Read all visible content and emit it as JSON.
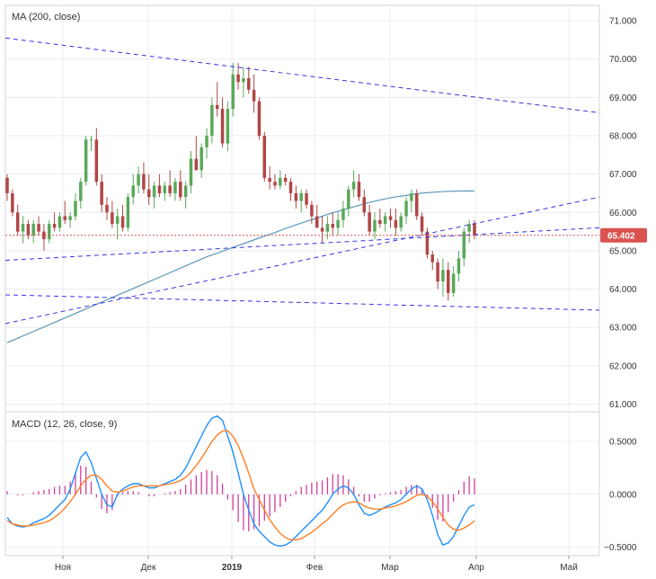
{
  "chart_data": [
    {
      "type": "candlestick",
      "title": "MA (200, close)",
      "y_ticks": [
        "71.000",
        "70.000",
        "69.000",
        "68.000",
        "67.000",
        "66.000",
        "65.000",
        "64.000",
        "63.000",
        "62.000",
        "61.000"
      ],
      "ylim": [
        60.8,
        71.4
      ],
      "current_price_label": "65.402",
      "current_price": 65.402,
      "x_labels": [
        "Ноя",
        "Дек",
        "2019",
        "Фев",
        "Мар",
        "Апр",
        "Май"
      ],
      "candles_ohlc": [
        [
          66.9,
          67.0,
          66.3,
          66.5
        ],
        [
          66.5,
          66.6,
          65.9,
          66.0
        ],
        [
          66.0,
          66.2,
          65.4,
          65.5
        ],
        [
          65.5,
          65.9,
          65.2,
          65.7
        ],
        [
          65.7,
          65.8,
          65.3,
          65.4
        ],
        [
          65.4,
          65.8,
          65.2,
          65.7
        ],
        [
          65.7,
          65.9,
          65.4,
          65.5
        ],
        [
          65.5,
          65.7,
          65.0,
          65.3
        ],
        [
          65.3,
          65.8,
          65.2,
          65.7
        ],
        [
          65.7,
          66.0,
          65.5,
          65.6
        ],
        [
          65.6,
          66.0,
          65.5,
          65.9
        ],
        [
          65.9,
          66.3,
          65.7,
          65.8
        ],
        [
          65.8,
          66.0,
          65.6,
          65.9
        ],
        [
          65.9,
          66.5,
          65.8,
          66.3
        ],
        [
          66.3,
          66.9,
          66.1,
          66.8
        ],
        [
          66.8,
          68.0,
          66.7,
          67.9
        ],
        [
          67.9,
          68.0,
          67.6,
          67.9
        ],
        [
          67.9,
          68.2,
          66.7,
          66.8
        ],
        [
          66.8,
          67.0,
          66.0,
          66.2
        ],
        [
          66.2,
          66.4,
          65.8,
          66.0
        ],
        [
          66.0,
          66.3,
          65.6,
          65.7
        ],
        [
          65.7,
          66.1,
          65.3,
          65.9
        ],
        [
          65.9,
          66.2,
          65.5,
          65.6
        ],
        [
          65.6,
          66.5,
          65.5,
          66.4
        ],
        [
          66.4,
          67.0,
          66.2,
          66.7
        ],
        [
          66.7,
          67.2,
          66.5,
          67.0
        ],
        [
          67.0,
          67.3,
          66.5,
          66.6
        ],
        [
          66.6,
          67.0,
          66.2,
          66.4
        ],
        [
          66.4,
          66.8,
          66.1,
          66.7
        ],
        [
          66.7,
          67.0,
          66.4,
          66.5
        ],
        [
          66.5,
          66.8,
          66.3,
          66.7
        ],
        [
          66.7,
          67.1,
          66.4,
          66.5
        ],
        [
          66.5,
          66.9,
          66.3,
          66.8
        ],
        [
          66.8,
          67.1,
          66.3,
          66.4
        ],
        [
          66.4,
          66.8,
          66.1,
          66.7
        ],
        [
          66.7,
          67.6,
          66.5,
          67.4
        ],
        [
          67.4,
          68.0,
          67.2,
          67.1
        ],
        [
          67.1,
          67.8,
          66.9,
          67.7
        ],
        [
          67.7,
          68.2,
          67.4,
          68.0
        ],
        [
          68.0,
          69.0,
          67.8,
          68.8
        ],
        [
          68.8,
          69.4,
          68.5,
          68.7
        ],
        [
          68.7,
          69.0,
          67.7,
          67.8
        ],
        [
          67.8,
          68.9,
          67.6,
          68.7
        ],
        [
          68.7,
          69.9,
          68.5,
          69.6
        ],
        [
          69.6,
          69.9,
          69.2,
          69.4
        ],
        [
          69.4,
          69.8,
          69.0,
          69.5
        ],
        [
          69.5,
          69.8,
          69.1,
          69.2
        ],
        [
          69.2,
          69.6,
          68.6,
          68.9
        ],
        [
          68.9,
          69.0,
          67.9,
          68.0
        ],
        [
          68.0,
          68.1,
          66.8,
          66.9
        ],
        [
          66.9,
          67.2,
          66.6,
          66.8
        ],
        [
          66.8,
          67.0,
          66.6,
          66.7
        ],
        [
          66.7,
          67.1,
          66.6,
          66.9
        ],
        [
          66.9,
          67.0,
          66.7,
          66.8
        ],
        [
          66.8,
          66.9,
          66.3,
          66.5
        ],
        [
          66.5,
          66.7,
          66.1,
          66.3
        ],
        [
          66.3,
          66.6,
          66.0,
          66.5
        ],
        [
          66.5,
          66.6,
          66.1,
          66.2
        ],
        [
          66.2,
          66.3,
          65.7,
          65.9
        ],
        [
          65.9,
          66.2,
          65.6,
          65.6
        ],
        [
          65.6,
          65.9,
          65.2,
          65.5
        ],
        [
          65.5,
          65.9,
          65.3,
          65.7
        ],
        [
          65.7,
          66.0,
          65.4,
          65.6
        ],
        [
          65.6,
          66.0,
          65.4,
          65.8
        ],
        [
          65.8,
          66.3,
          65.6,
          66.1
        ],
        [
          66.1,
          66.7,
          65.9,
          66.6
        ],
        [
          66.6,
          67.1,
          66.4,
          66.8
        ],
        [
          66.8,
          67.0,
          66.3,
          66.4
        ],
        [
          66.4,
          66.6,
          65.9,
          66.0
        ],
        [
          66.0,
          66.2,
          65.4,
          65.5
        ],
        [
          65.5,
          66.0,
          65.3,
          65.8
        ],
        [
          65.8,
          66.1,
          65.6,
          65.7
        ],
        [
          65.7,
          66.0,
          65.5,
          65.9
        ],
        [
          65.9,
          66.1,
          65.6,
          65.8
        ],
        [
          65.8,
          66.1,
          65.4,
          65.6
        ],
        [
          65.6,
          66.0,
          65.5,
          65.9
        ],
        [
          65.9,
          66.4,
          65.7,
          66.3
        ],
        [
          66.3,
          66.6,
          66.0,
          66.5
        ],
        [
          66.5,
          66.6,
          65.8,
          65.9
        ],
        [
          65.9,
          66.0,
          65.4,
          65.5
        ],
        [
          65.5,
          65.6,
          64.8,
          64.9
        ],
        [
          64.9,
          65.0,
          64.5,
          64.7
        ],
        [
          64.7,
          64.8,
          64.0,
          64.2
        ],
        [
          64.2,
          64.8,
          63.8,
          64.5
        ],
        [
          64.5,
          64.7,
          63.7,
          63.9
        ],
        [
          63.9,
          64.6,
          63.8,
          64.4
        ],
        [
          64.4,
          65.0,
          64.2,
          64.8
        ],
        [
          64.8,
          65.6,
          64.6,
          65.5
        ],
        [
          65.5,
          65.8,
          65.2,
          65.7
        ],
        [
          65.7,
          65.8,
          65.3,
          65.4
        ]
      ],
      "ma200": [
        62.6,
        62.75,
        62.9,
        63.05,
        63.2,
        63.35,
        63.5,
        63.65,
        63.8,
        63.95,
        64.1,
        64.25,
        64.4,
        64.55,
        64.7,
        64.85,
        64.97,
        65.1,
        65.22,
        65.35,
        65.47,
        65.6,
        65.72,
        65.83,
        65.95,
        66.05,
        66.15,
        66.25,
        66.33,
        66.4,
        66.45,
        66.5,
        66.53,
        66.55,
        66.56,
        66.56
      ],
      "trend_lines": [
        {
          "x": [
            0,
            1.4
          ],
          "y": [
            70.55,
            68.6
          ]
        },
        {
          "x": [
            0,
            1.4
          ],
          "y": [
            64.75,
            65.6
          ]
        },
        {
          "x": [
            0,
            1.4
          ],
          "y": [
            63.85,
            63.45
          ]
        },
        {
          "x": [
            0,
            1.4
          ],
          "y": [
            63.1,
            66.4
          ]
        }
      ]
    },
    {
      "type": "macd",
      "title": "MACD (12, 26, close, 9)",
      "y_ticks": [
        "0.5000",
        "0.0000",
        "−0.5000"
      ],
      "ylim": [
        -0.58,
        0.78
      ],
      "macd": [
        -0.22,
        -0.28,
        -0.3,
        -0.31,
        -0.3,
        -0.27,
        -0.25,
        -0.23,
        -0.2,
        -0.15,
        -0.1,
        -0.05,
        0.05,
        0.2,
        0.35,
        0.4,
        0.3,
        0.15,
        0.0,
        -0.1,
        -0.12,
        0.0,
        0.05,
        0.08,
        0.1,
        0.1,
        0.08,
        0.06,
        0.06,
        0.08,
        0.1,
        0.12,
        0.14,
        0.18,
        0.25,
        0.35,
        0.45,
        0.55,
        0.65,
        0.72,
        0.74,
        0.7,
        0.55,
        0.4,
        0.2,
        0.0,
        -0.15,
        -0.28,
        -0.35,
        -0.4,
        -0.45,
        -0.48,
        -0.49,
        -0.48,
        -0.45,
        -0.4,
        -0.35,
        -0.3,
        -0.25,
        -0.2,
        -0.15,
        -0.08,
        0.0,
        0.05,
        0.08,
        0.06,
        0.0,
        -0.1,
        -0.18,
        -0.2,
        -0.18,
        -0.15,
        -0.12,
        -0.1,
        -0.08,
        -0.05,
        0.0,
        0.05,
        0.08,
        0.05,
        -0.05,
        -0.2,
        -0.38,
        -0.48,
        -0.46,
        -0.4,
        -0.3,
        -0.2,
        -0.12,
        -0.1
      ],
      "signal": [
        -0.25,
        -0.28,
        -0.29,
        -0.3,
        -0.3,
        -0.29,
        -0.28,
        -0.27,
        -0.25,
        -0.22,
        -0.18,
        -0.13,
        -0.07,
        0.0,
        0.08,
        0.14,
        0.18,
        0.18,
        0.14,
        0.08,
        0.03,
        0.02,
        0.03,
        0.05,
        0.07,
        0.08,
        0.08,
        0.08,
        0.08,
        0.08,
        0.09,
        0.1,
        0.11,
        0.13,
        0.16,
        0.21,
        0.27,
        0.34,
        0.42,
        0.5,
        0.56,
        0.6,
        0.6,
        0.55,
        0.46,
        0.34,
        0.2,
        0.05,
        -0.05,
        -0.15,
        -0.24,
        -0.31,
        -0.37,
        -0.41,
        -0.43,
        -0.43,
        -0.42,
        -0.39,
        -0.36,
        -0.32,
        -0.28,
        -0.24,
        -0.19,
        -0.14,
        -0.1,
        -0.08,
        -0.07,
        -0.08,
        -0.11,
        -0.13,
        -0.14,
        -0.14,
        -0.13,
        -0.12,
        -0.11,
        -0.09,
        -0.07,
        -0.04,
        -0.01,
        0.0,
        -0.02,
        -0.07,
        -0.14,
        -0.22,
        -0.29,
        -0.33,
        -0.34,
        -0.32,
        -0.29,
        -0.25
      ]
    }
  ],
  "colors": {
    "bull": "#5aa85a",
    "bear": "#b04646",
    "ma": "#5b97b8",
    "trend": "#3535e0",
    "price_line": "#e05050",
    "price_tag": "#d9534f",
    "macd_line": "#1e90ff",
    "signal_line": "#ff7f24",
    "hist": "#d0409a",
    "grid": "#e8ecf0"
  }
}
